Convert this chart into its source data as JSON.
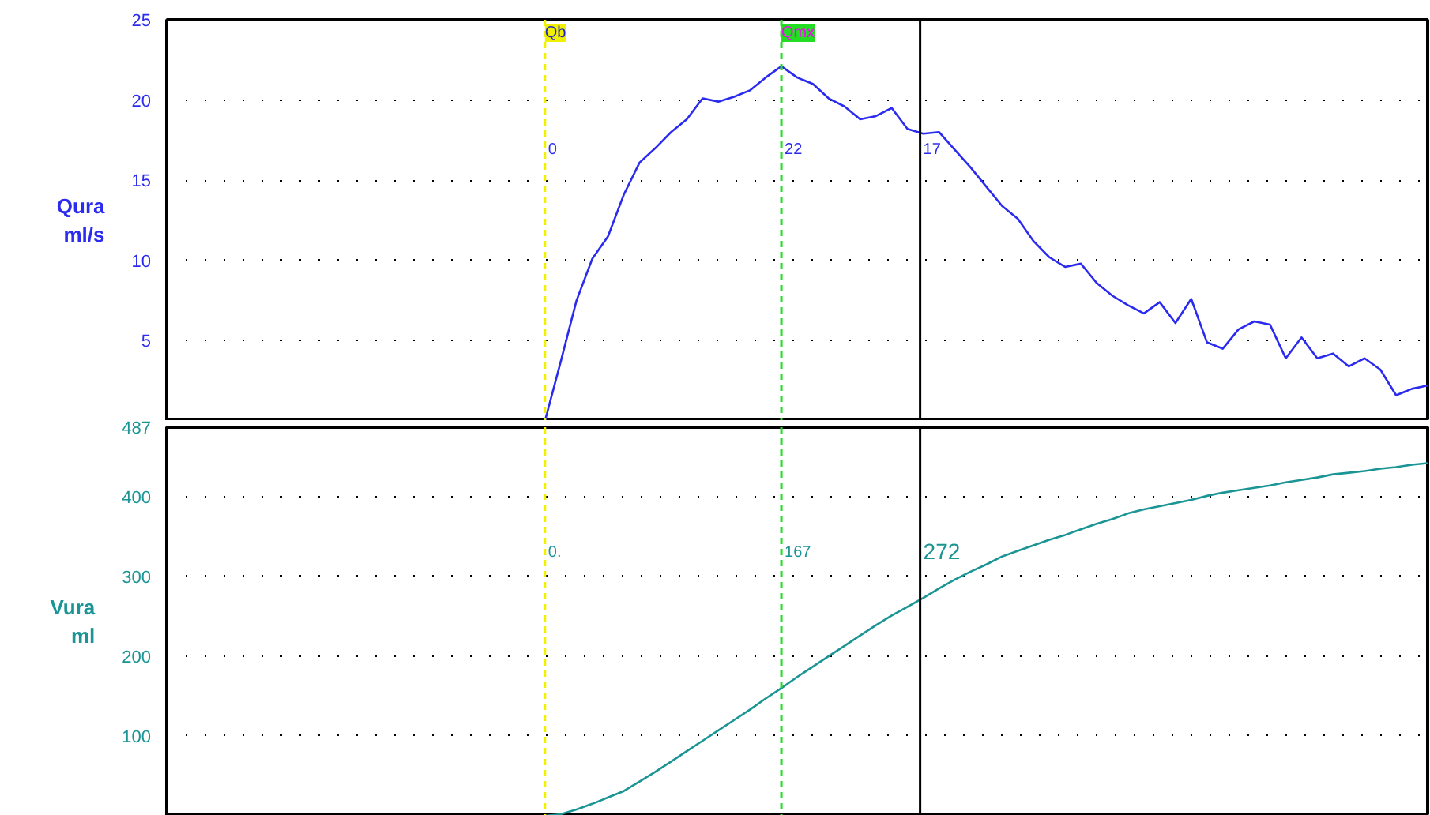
{
  "chart_data": [
    {
      "type": "line",
      "ylabel": "Qura\nml/s",
      "ylim": [
        0,
        25
      ],
      "yticks": [
        5,
        10,
        15,
        20,
        25
      ],
      "grid": "y",
      "tick_labels": "y",
      "categories": [
        null,
        null,
        null,
        null,
        null,
        null,
        null,
        null,
        null,
        null,
        null,
        null,
        null,
        null,
        null,
        null,
        null,
        null,
        null,
        null,
        null,
        null,
        null,
        null,
        null,
        null,
        null,
        null,
        null,
        null,
        null,
        null,
        null,
        null,
        null,
        null,
        null,
        null,
        null,
        null,
        null,
        null,
        null,
        null,
        null,
        null,
        null,
        null,
        null,
        null,
        null,
        null,
        null,
        null,
        null,
        null,
        null,
        null,
        null,
        null,
        null,
        null,
        null,
        null,
        null,
        null,
        null,
        null,
        null,
        null,
        null,
        null,
        null,
        null,
        null,
        null,
        null,
        null,
        null,
        null,
        null
      ],
      "series": [
        {
          "color": "#2b2bf0",
          "values": [
            null,
            null,
            null,
            null,
            null,
            null,
            null,
            null,
            null,
            null,
            null,
            null,
            null,
            null,
            null,
            null,
            null,
            null,
            null,
            null,
            null,
            null,
            null,
            null,
            0,
            3.7,
            7.5,
            10.1,
            11.5,
            14.1,
            16.1,
            17.0,
            18.0,
            18.8,
            20.1,
            19.9,
            20.2,
            20.6,
            21.4,
            22.1,
            21.4,
            21.0,
            20.1,
            19.6,
            18.8,
            19.0,
            19.5,
            18.2,
            17.9,
            18.0,
            16.9,
            15.8,
            14.6,
            13.4,
            12.6,
            11.2,
            10.2,
            9.6,
            9.8,
            8.6,
            7.8,
            7.2,
            6.7,
            7.4,
            6.1,
            7.6,
            4.9,
            4.5,
            5.7,
            6.2,
            6.0,
            3.9,
            5.2,
            3.9,
            4.2,
            3.4,
            3.9,
            3.2,
            1.6,
            2.0,
            2.2
          ]
        }
      ],
      "annotations": [
        "Qb",
        "Qmx",
        "0",
        "22",
        "17"
      ]
    },
    {
      "type": "line",
      "ylabel": "Vura\nml",
      "ylim": [
        0,
        487
      ],
      "yticks": [
        100,
        200,
        300,
        400,
        487
      ],
      "grid": "y",
      "tick_labels": "y",
      "categories": [
        null,
        null,
        null,
        null,
        null,
        null,
        null,
        null,
        null,
        null,
        null,
        null,
        null,
        null,
        null,
        null,
        null,
        null,
        null,
        null,
        null,
        null,
        null,
        null,
        null,
        null,
        null,
        null,
        null,
        null,
        null,
        null,
        null,
        null,
        null,
        null,
        null,
        null,
        null,
        null,
        null,
        null,
        null,
        null,
        null,
        null,
        null,
        null,
        null,
        null,
        null,
        null,
        null,
        null,
        null,
        null,
        null,
        null,
        null,
        null,
        null,
        null,
        null,
        null,
        null,
        null,
        null,
        null,
        null,
        null,
        null,
        null,
        null,
        null,
        null,
        null,
        null,
        null,
        null,
        null,
        null
      ],
      "series": [
        {
          "color": "#1a9494",
          "values": [
            null,
            null,
            null,
            null,
            null,
            null,
            null,
            null,
            null,
            null,
            null,
            null,
            null,
            null,
            null,
            null,
            null,
            null,
            null,
            null,
            null,
            null,
            null,
            null,
            0,
            2,
            8,
            15,
            23,
            31,
            43,
            55,
            68,
            81,
            94,
            107,
            120,
            133,
            147,
            160,
            174,
            187,
            200,
            213,
            226,
            239,
            251,
            262,
            273,
            285,
            296,
            306,
            315,
            325,
            332,
            339,
            346,
            352,
            359,
            366,
            372,
            379,
            384,
            388,
            392,
            396,
            401,
            405,
            408,
            411,
            414,
            418,
            421,
            424,
            428,
            430,
            432,
            435,
            437,
            440,
            442
          ]
        }
      ],
      "annotations": [
        "0.",
        "167",
        "272"
      ]
    }
  ]
}
